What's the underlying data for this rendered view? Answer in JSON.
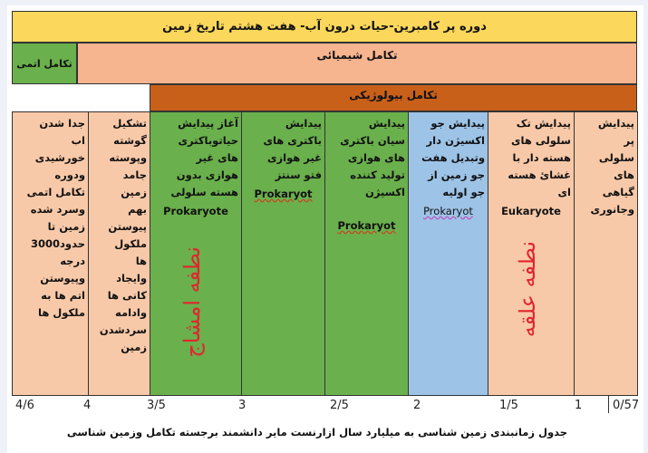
{
  "title": "دوره پر کامبرین-حیات درون آب- هفت هشتم تاریخ زمین",
  "atomic_evolution": "تکامل اتمی",
  "chemical_evolution": "تکامل شیمیائی",
  "biological_evolution": "تکامل بیولوژیکی",
  "columns": [
    {
      "text": "جدا شدن\nاب\nخورشیدی\nودوره\nتکامل اتمی\nوسرد شده\nزمین تا\nحدود3000\nدرجه\nوپیوستن\nاتم ها به\nملکول ها",
      "label": "",
      "color": "#f8c9a8"
    },
    {
      "text": "تشکیل\nگوشته\nوپوسته\nجامد\nزمین\nبهم\nپیوستن\nملکول\nها\nوایجاد\nکانی ها\nوادامه\nسردشدن\nزمین",
      "label": "",
      "color": "#f8c9a8"
    },
    {
      "text": "آغاز پیدایش\nحیاتوباکتری\nهای غیر\nهوازی بدون\nهسته سلولی",
      "label": "Prokaryote",
      "color": "#6ab04c",
      "handwritten": "نطفه امشاج"
    },
    {
      "text": "پیدایش\nباکتری های\nغیر هوازی\nفتو سنتز",
      "label": "Prokaryot",
      "color": "#6ab04c"
    },
    {
      "text": "پیدایش\nسیان باکتری\nهای هوازی\nتولید کننده\nاکسیژن",
      "label": "Prokaryot",
      "color": "#6ab04c"
    },
    {
      "text": "پیدایش جو\nاکسیژن دار\nوتبدیل هفت\nجو زمین از\nجو اولیه",
      "label": "Prokaryot",
      "color": "#9dc3e6"
    },
    {
      "text": "پیدایش تک\nسلولی های\nهسته دار با\nغشائ هسته\nای",
      "label": "Eukaryote",
      "color": "#f8c9a8",
      "handwritten": "نطفه علقه"
    },
    {
      "text": "پیدایش\nپر\nسلولی\nهای\nگیاهی\nوجانوری",
      "label": "",
      "color": "#f8c9a8"
    }
  ],
  "axis_ticks": [
    "4/6",
    "4",
    "3/5",
    "3",
    "2/5",
    "2",
    "1/5",
    "1",
    "0/57"
  ],
  "caption": "جدول زمانبندی زمین شناسی  به میلیارد سال ازارنست مایر دانشمند برجسته تکامل وزمین شناسی"
}
